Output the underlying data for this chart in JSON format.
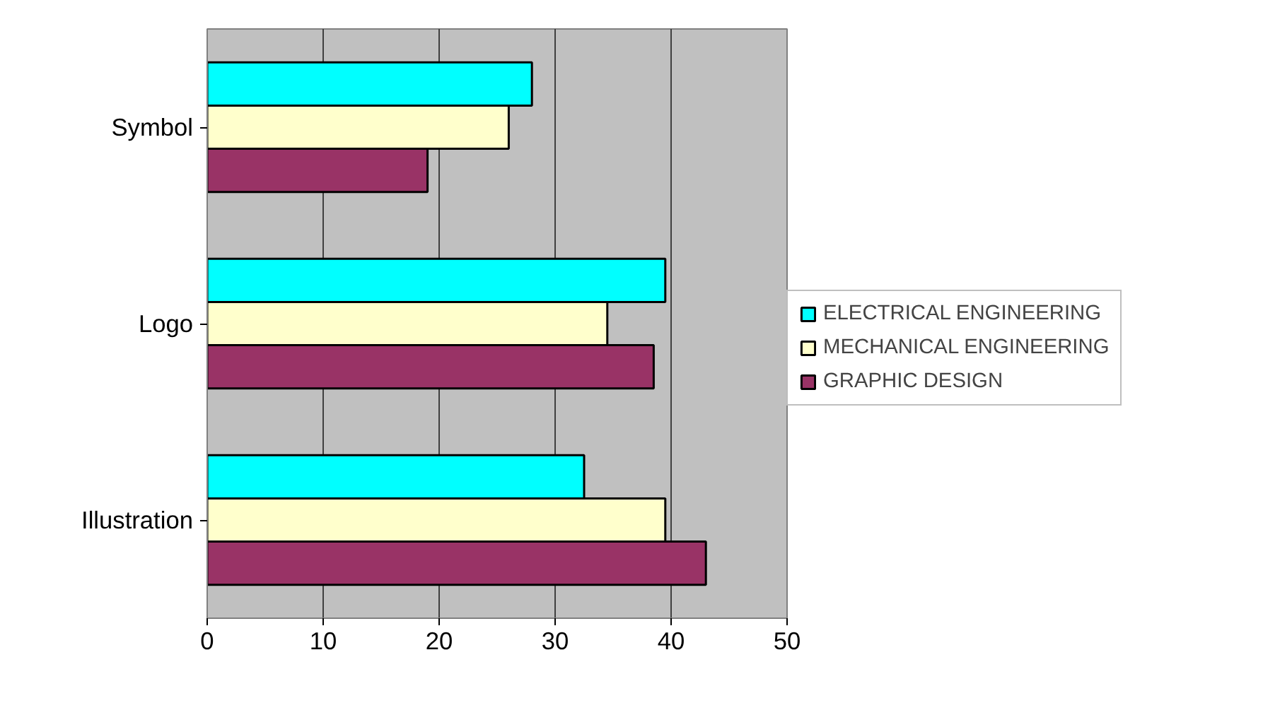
{
  "chart_data": {
    "type": "bar",
    "orientation": "horizontal",
    "categories": [
      "Symbol",
      "Logo",
      "Illustration"
    ],
    "series": [
      {
        "name": "ELECTRICAL ENGINEERING",
        "color": "#00ffff",
        "values": [
          28,
          39.5,
          32.5
        ]
      },
      {
        "name": "MECHANICAL ENGINEERING",
        "color": "#ffffcc",
        "values": [
          26,
          34.5,
          39.5
        ]
      },
      {
        "name": "GRAPHIC DESIGN",
        "color": "#993366",
        "values": [
          19,
          38.5,
          43
        ]
      }
    ],
    "xlim": [
      0,
      50
    ],
    "xticks": [
      0,
      10,
      20,
      30,
      40,
      50
    ],
    "grid": "x",
    "legend": "right"
  }
}
